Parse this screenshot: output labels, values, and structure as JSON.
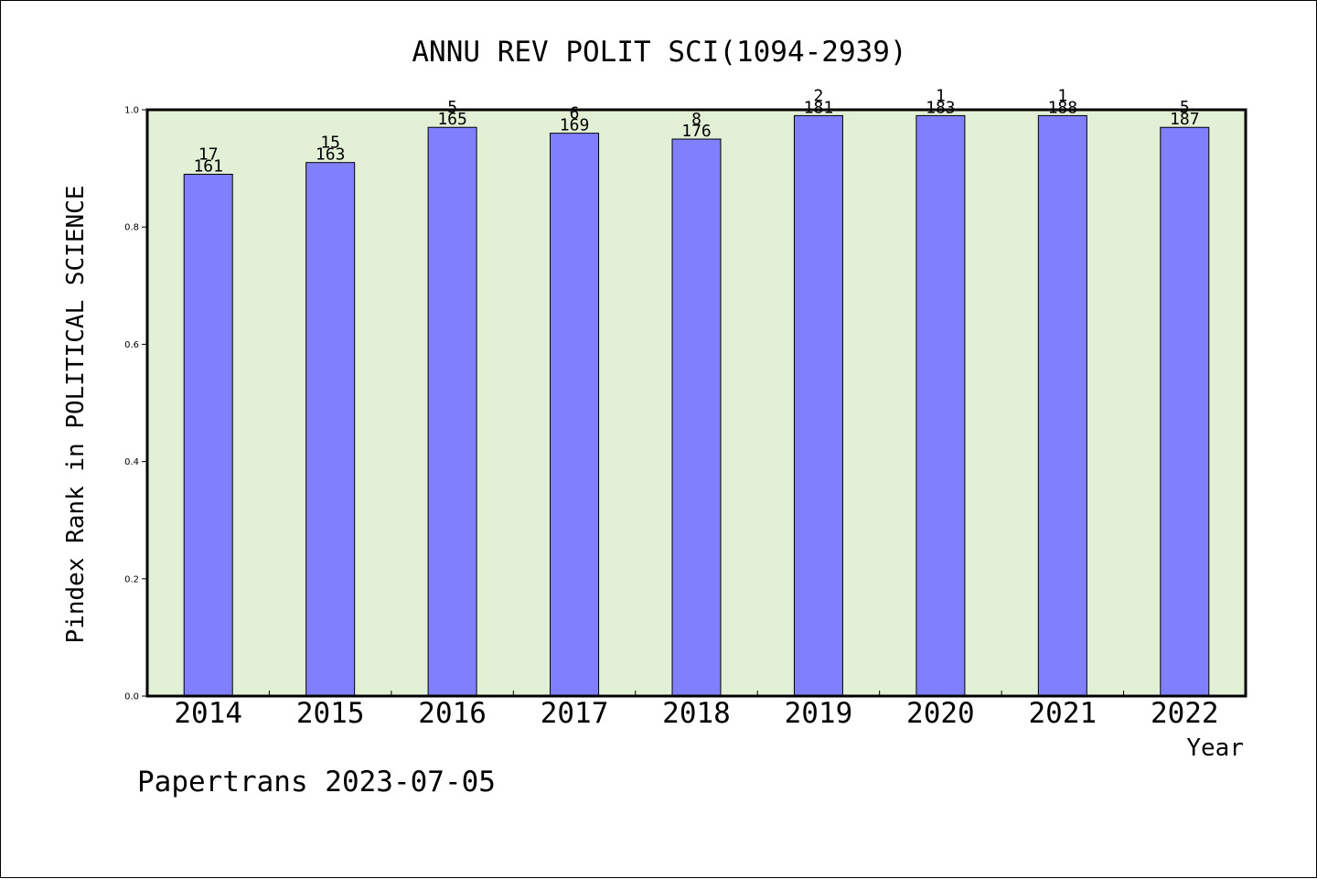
{
  "chart_data": {
    "type": "bar",
    "title": "ANNU REV POLIT SCI(1094-2939)",
    "xlabel": "Year",
    "ylabel": "Pindex Rank in POLITICAL SCIENCE",
    "footer": "Papertrans 2023-07-05",
    "categories": [
      "2014",
      "2015",
      "2016",
      "2017",
      "2018",
      "2019",
      "2020",
      "2021",
      "2022"
    ],
    "values": [
      0.89,
      0.91,
      0.97,
      0.96,
      0.95,
      0.99,
      0.99,
      0.99,
      0.97
    ],
    "rank_labels": [
      "17",
      "15",
      "5",
      "6",
      "8",
      "2",
      "1",
      "1",
      "5"
    ],
    "total_labels": [
      "161",
      "163",
      "165",
      "169",
      "176",
      "181",
      "183",
      "188",
      "187"
    ],
    "ylim": [
      0,
      1.0
    ],
    "yticks": [
      "0.0",
      "0.2",
      "0.4",
      "0.6",
      "0.8",
      "1.0"
    ],
    "grid": false,
    "colors": {
      "bar_fill": "#8080ff",
      "plot_background": "#e2f0d6",
      "axis": "#000000"
    }
  }
}
